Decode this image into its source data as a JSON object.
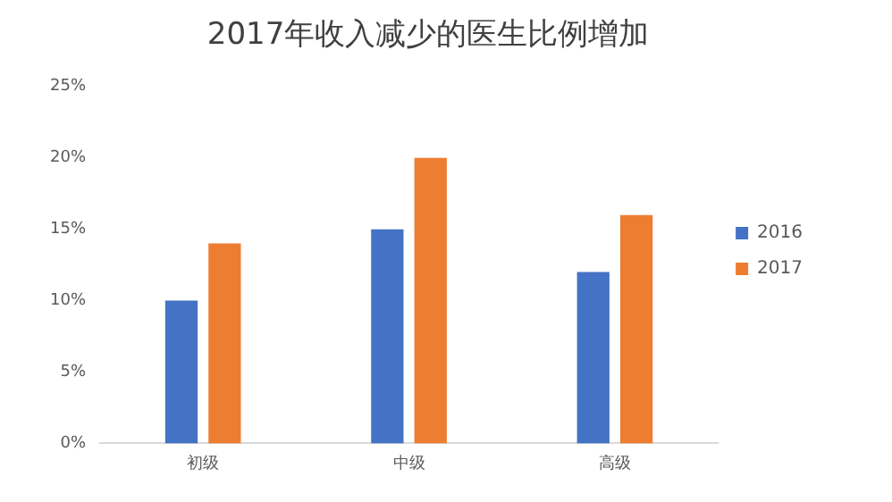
{
  "chart_data": {
    "type": "bar",
    "title": "2017年收入减少的医生比例增加",
    "categories": [
      "初级",
      "中级",
      "高级"
    ],
    "series": [
      {
        "name": "2016",
        "color": "#4472c4",
        "values": [
          10,
          15,
          12
        ]
      },
      {
        "name": "2017",
        "color": "#ed7d31",
        "values": [
          14,
          20,
          16
        ]
      }
    ],
    "ylim": [
      0,
      25
    ],
    "yticks": [
      {
        "value": 0,
        "label": "0%"
      },
      {
        "value": 5,
        "label": "5%"
      },
      {
        "value": 10,
        "label": "10%"
      },
      {
        "value": 15,
        "label": "15%"
      },
      {
        "value": 20,
        "label": "20%"
      },
      {
        "value": 25,
        "label": "25%"
      }
    ],
    "grid": false,
    "legend": "right"
  }
}
